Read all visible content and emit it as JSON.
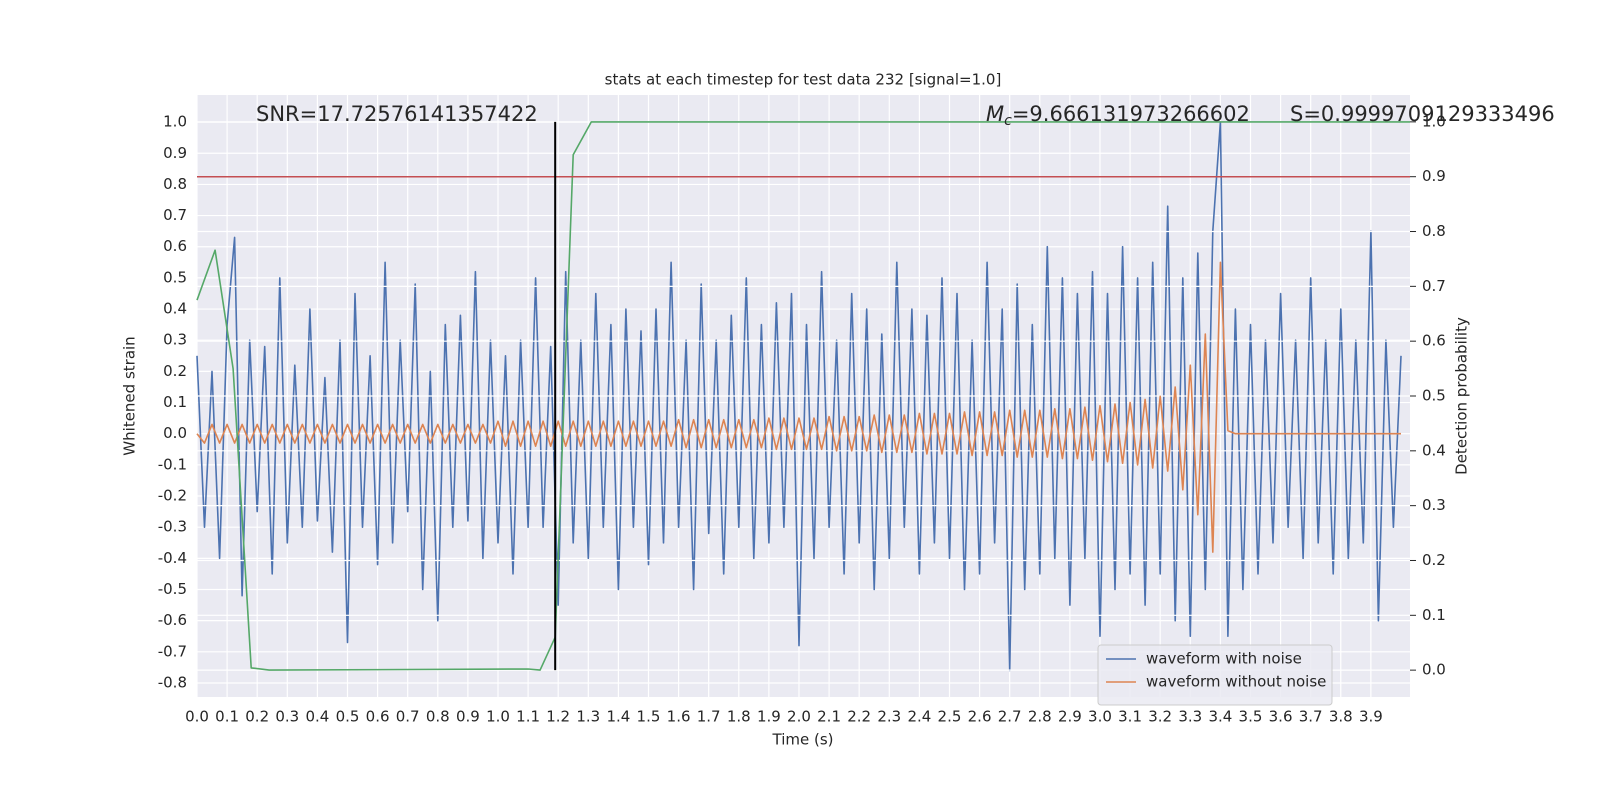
{
  "chart_data": {
    "type": "line",
    "title": "stats at each timestep for test data 232 [signal=1.0]",
    "xlabel": "Time (s)",
    "ylabel": "Whitened strain",
    "y2label": "Detection probability",
    "annotations": {
      "snr": "SNR=17.72576141357422",
      "mc_symbol": "M",
      "mc_sub": "c",
      "mc_value": "=9.666131973266602",
      "s": "S=0.9999709129333496"
    },
    "x": [
      0,
      0.025,
      0.05,
      0.075,
      0.1,
      0.125,
      0.15,
      0.175,
      0.2,
      0.225,
      0.25,
      0.275,
      0.3,
      0.325,
      0.35,
      0.375,
      0.4,
      0.425,
      0.45,
      0.475,
      0.5,
      0.525,
      0.55,
      0.575,
      0.6,
      0.625,
      0.65,
      0.675,
      0.7,
      0.725,
      0.75,
      0.775,
      0.8,
      0.825,
      0.85,
      0.875,
      0.9,
      0.925,
      0.95,
      0.975,
      1,
      1.025,
      1.05,
      1.075,
      1.1,
      1.125,
      1.15,
      1.175,
      1.2,
      1.225,
      1.25,
      1.275,
      1.3,
      1.325,
      1.35,
      1.375,
      1.4,
      1.425,
      1.45,
      1.475,
      1.5,
      1.525,
      1.55,
      1.575,
      1.6,
      1.625,
      1.65,
      1.675,
      1.7,
      1.725,
      1.75,
      1.775,
      1.8,
      1.825,
      1.85,
      1.875,
      1.9,
      1.925,
      1.95,
      1.975,
      2,
      2.025,
      2.05,
      2.075,
      2.1,
      2.125,
      2.15,
      2.175,
      2.2,
      2.225,
      2.25,
      2.275,
      2.3,
      2.325,
      2.35,
      2.375,
      2.4,
      2.425,
      2.45,
      2.475,
      2.5,
      2.525,
      2.55,
      2.575,
      2.6,
      2.625,
      2.65,
      2.675,
      2.7,
      2.725,
      2.75,
      2.775,
      2.8,
      2.825,
      2.85,
      2.875,
      2.9,
      2.925,
      2.95,
      2.975,
      3,
      3.025,
      3.05,
      3.075,
      3.1,
      3.125,
      3.15,
      3.175,
      3.2,
      3.225,
      3.25,
      3.275,
      3.3,
      3.325,
      3.35,
      3.375,
      3.4,
      3.425,
      3.45,
      3.475,
      3.5,
      3.525,
      3.55,
      3.575,
      3.6,
      3.625,
      3.65,
      3.675,
      3.7,
      3.725,
      3.75,
      3.775,
      3.8,
      3.825,
      3.85,
      3.875,
      3.9,
      3.925,
      3.95,
      3.975,
      4
    ],
    "series": [
      {
        "name": "waveform with noise",
        "color": "#4c72b0",
        "values": [
          0.25,
          -0.3,
          0.2,
          -0.4,
          0.35,
          0.63,
          -0.52,
          0.3,
          -0.25,
          0.28,
          -0.45,
          0.5,
          -0.35,
          0.22,
          -0.3,
          0.4,
          -0.28,
          0.18,
          -0.38,
          0.3,
          -0.67,
          0.45,
          -0.3,
          0.25,
          -0.42,
          0.55,
          -0.35,
          0.3,
          -0.25,
          0.48,
          -0.5,
          0.2,
          -0.6,
          0.35,
          -0.3,
          0.38,
          -0.28,
          0.52,
          -0.4,
          0.3,
          -0.35,
          0.25,
          -0.45,
          0.3,
          -0.3,
          0.5,
          -0.3,
          0.28,
          -0.55,
          0.52,
          -0.35,
          0.3,
          -0.4,
          0.45,
          -0.3,
          0.35,
          -0.5,
          0.4,
          -0.3,
          0.33,
          -0.42,
          0.4,
          -0.35,
          0.55,
          -0.3,
          0.3,
          -0.5,
          0.48,
          -0.32,
          0.3,
          -0.45,
          0.38,
          -0.3,
          0.5,
          -0.4,
          0.35,
          -0.35,
          0.42,
          -0.3,
          0.45,
          -0.68,
          0.35,
          -0.4,
          0.52,
          -0.3,
          0.3,
          -0.45,
          0.45,
          -0.35,
          0.4,
          -0.5,
          0.32,
          -0.4,
          0.55,
          -0.3,
          0.4,
          -0.45,
          0.38,
          -0.35,
          0.5,
          -0.4,
          0.45,
          -0.5,
          0.3,
          -0.45,
          0.55,
          -0.35,
          0.4,
          -0.76,
          0.48,
          -0.5,
          0.35,
          -0.45,
          0.6,
          -0.4,
          0.5,
          -0.55,
          0.45,
          -0.4,
          0.52,
          -0.65,
          0.45,
          -0.5,
          0.6,
          -0.45,
          0.5,
          -0.55,
          0.55,
          -0.45,
          0.73,
          -0.6,
          0.5,
          -0.65,
          0.58,
          -0.5,
          0.65,
          1.0,
          -0.65,
          0.4,
          -0.5,
          0.35,
          -0.45,
          0.3,
          -0.35,
          0.45,
          -0.3,
          0.3,
          -0.4,
          0.5,
          -0.35,
          0.3,
          -0.45,
          0.4,
          -0.4,
          0.3,
          -0.35,
          0.65,
          -0.6,
          0.3,
          -0.3,
          0.25
        ]
      },
      {
        "name": "waveform without noise",
        "color": "#dd8452",
        "values": [
          0,
          -0.03,
          0.03,
          -0.03,
          0.03,
          -0.03,
          0.03,
          -0.03,
          0.03,
          -0.03,
          0.03,
          -0.03,
          0.03,
          -0.03,
          0.03,
          -0.03,
          0.03,
          -0.03,
          0.03,
          -0.03,
          0.03,
          -0.03,
          0.03,
          -0.03,
          0.03,
          -0.03,
          0.03,
          -0.03,
          0.03,
          -0.03,
          0.03,
          -0.03,
          0.03,
          -0.03,
          0.03,
          -0.03,
          0.03,
          -0.03,
          0.03,
          -0.03,
          0.04,
          -0.04,
          0.04,
          -0.04,
          0.04,
          -0.04,
          0.04,
          -0.04,
          0.04,
          -0.04,
          0.04,
          -0.04,
          0.04,
          -0.04,
          0.04,
          -0.04,
          0.04,
          -0.04,
          0.04,
          -0.04,
          0.04,
          -0.04,
          0.04,
          -0.04,
          0.045,
          -0.045,
          0.045,
          -0.045,
          0.045,
          -0.045,
          0.045,
          -0.045,
          0.045,
          -0.045,
          0.045,
          -0.045,
          0.05,
          -0.05,
          0.05,
          -0.05,
          0.05,
          -0.05,
          0.05,
          -0.05,
          0.055,
          -0.055,
          0.055,
          -0.055,
          0.055,
          -0.055,
          0.06,
          -0.06,
          0.06,
          -0.06,
          0.06,
          -0.06,
          0.065,
          -0.065,
          0.065,
          -0.065,
          0.065,
          -0.065,
          0.07,
          -0.07,
          0.07,
          -0.07,
          0.07,
          -0.07,
          0.075,
          -0.075,
          0.075,
          -0.075,
          0.075,
          -0.075,
          0.08,
          -0.08,
          0.08,
          -0.08,
          0.085,
          -0.085,
          0.09,
          -0.09,
          0.095,
          -0.095,
          0.1,
          -0.1,
          0.11,
          -0.11,
          0.12,
          -0.12,
          0.15,
          -0.18,
          0.22,
          -0.26,
          0.32,
          -0.38,
          0.55,
          0.01,
          0,
          0,
          0,
          0,
          0,
          0,
          0,
          0,
          0,
          0,
          0,
          0,
          0,
          0,
          0,
          0,
          0,
          0,
          0,
          0,
          0,
          0,
          0
        ]
      },
      {
        "name": "detection probability",
        "color": "#55a868",
        "axis": "y2",
        "x": [
          0,
          0.06,
          0.12,
          0.18,
          0.24,
          1.1,
          1.14,
          1.19,
          1.25,
          1.31,
          4.03
        ],
        "values": [
          0.675,
          0.766,
          0.55,
          0.004,
          0,
          0.002,
          0,
          0.06,
          0.94,
          1.0,
          1.0
        ]
      }
    ],
    "threshold": {
      "value": 0.9,
      "color": "#c44e52",
      "axis": "y2"
    },
    "vline": {
      "x": 1.19,
      "color": "#000000"
    },
    "xlim": [
      0,
      4.03
    ],
    "ylim": [
      -0.845,
      1.087
    ],
    "y2lim": [
      -0.049,
      1.049
    ],
    "xticks": [
      {
        "value": 0,
        "label": "0.0"
      },
      0.1,
      0.2,
      0.3,
      0.4,
      0.5,
      0.6,
      0.7,
      0.8,
      0.9,
      {
        "value": 1,
        "label": "1.0"
      },
      1.1,
      1.2,
      1.3,
      1.4,
      1.5,
      1.6,
      1.7,
      1.8,
      1.9,
      {
        "value": 2,
        "label": "2.0"
      },
      2.1,
      2.2,
      2.3,
      2.4,
      2.5,
      2.6,
      2.7,
      2.8,
      2.9,
      {
        "value": 3,
        "label": "3.0"
      },
      3.1,
      3.2,
      3.3,
      3.4,
      3.5,
      3.6,
      3.7,
      3.8,
      3.9
    ],
    "yticks": [
      -0.8,
      -0.7,
      -0.6,
      -0.5,
      -0.4,
      -0.3,
      -0.2,
      -0.1,
      {
        "value": 0,
        "label": "0.0"
      },
      0.1,
      0.2,
      0.3,
      0.4,
      0.5,
      0.6,
      0.7,
      0.8,
      0.9,
      {
        "value": 1,
        "label": "1.0"
      }
    ],
    "y2ticks": [
      {
        "value": 0,
        "label": "0.0"
      },
      0.1,
      0.2,
      0.3,
      0.4,
      0.5,
      0.6,
      0.7,
      0.8,
      0.9,
      {
        "value": 1,
        "label": "1.0"
      }
    ],
    "grid": true,
    "legend": "lower right"
  }
}
